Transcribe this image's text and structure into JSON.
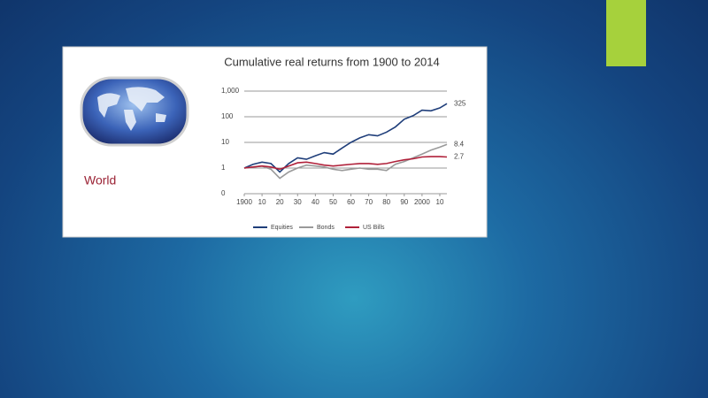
{
  "panel_label": "World",
  "chart_data": {
    "type": "line",
    "title": "Cumulative real returns from 1900 to 2014",
    "x": [
      1900,
      1905,
      1910,
      1915,
      1920,
      1925,
      1930,
      1935,
      1940,
      1945,
      1950,
      1955,
      1960,
      1965,
      1970,
      1975,
      1980,
      1985,
      1990,
      1995,
      2000,
      2005,
      2010,
      2014
    ],
    "series": [
      {
        "name": "Equities",
        "color": "#1f3e7a",
        "values": [
          1,
          1.4,
          1.7,
          1.5,
          0.7,
          1.5,
          2.5,
          2.2,
          3,
          4,
          3.5,
          6,
          10,
          15,
          20,
          18,
          25,
          40,
          80,
          110,
          180,
          170,
          220,
          325
        ]
      },
      {
        "name": "Bonds",
        "color": "#9a9a9a",
        "values": [
          1,
          1.1,
          1.2,
          0.9,
          0.4,
          0.7,
          1,
          1.3,
          1.2,
          1.1,
          0.9,
          0.8,
          0.9,
          1,
          0.9,
          0.9,
          0.8,
          1.4,
          1.8,
          2.5,
          3.5,
          5,
          6.5,
          8.4
        ]
      },
      {
        "name": "US Bills",
        "color": "#b0213a",
        "values": [
          1,
          1.1,
          1.2,
          1.1,
          0.9,
          1.2,
          1.6,
          1.7,
          1.5,
          1.3,
          1.2,
          1.3,
          1.4,
          1.5,
          1.5,
          1.4,
          1.5,
          1.8,
          2.1,
          2.3,
          2.7,
          2.8,
          2.8,
          2.7
        ]
      }
    ],
    "log_scale": true,
    "grid": true,
    "legend": "bottom",
    "xlim": [
      1900,
      2014
    ],
    "xticks": [
      1900,
      {
        "value": 1910,
        "label": "10"
      },
      {
        "value": 1920,
        "label": "20"
      },
      {
        "value": 1930,
        "label": "30"
      },
      {
        "value": 1940,
        "label": "40"
      },
      {
        "value": 1950,
        "label": "50"
      },
      {
        "value": 1960,
        "label": "60"
      },
      {
        "value": 1970,
        "label": "70"
      },
      {
        "value": 1980,
        "label": "80"
      },
      {
        "value": 1990,
        "label": "90"
      },
      2000,
      {
        "value": 2010,
        "label": "10"
      }
    ],
    "ylim": [
      0.1,
      1000
    ],
    "yticks": [
      {
        "value": 0.1,
        "label": "0"
      },
      1,
      10,
      100,
      {
        "value": 1000,
        "label": "1,000"
      }
    ]
  }
}
